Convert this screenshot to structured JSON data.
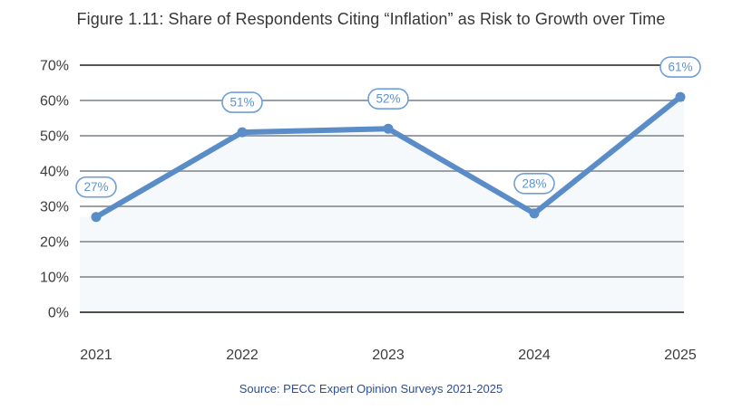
{
  "chart_data": {
    "type": "line",
    "title": "Figure 1.11: Share of Respondents Citing “Inflation” as Risk to Growth over Time",
    "categories": [
      "2021",
      "2022",
      "2023",
      "2024",
      "2025"
    ],
    "values": [
      27,
      51,
      52,
      28,
      61
    ],
    "data_labels": [
      "27%",
      "51%",
      "52%",
      "28%",
      "61%"
    ],
    "ylim": [
      0,
      70
    ],
    "y_ticks": [
      0,
      10,
      20,
      30,
      40,
      50,
      60,
      70
    ],
    "y_tick_labels": [
      "0%",
      "10%",
      "20%",
      "30%",
      "40%",
      "50%",
      "60%",
      "70%"
    ],
    "xlabel": "",
    "ylabel": "",
    "grid": true,
    "legend": "none",
    "source": "Source: PECC Expert Opinion Surveys 2021-2025",
    "colors": {
      "line": "#5a8cc7",
      "marker": "#5a8cc7",
      "area_fill": "rgba(91,140,199,0.055)",
      "pill_fill": "#ffffff",
      "pill_border": "#6f9fd8",
      "pill_text": "#5d93cf",
      "gridline": "#9aa0a6",
      "gridline_top": "#1f1f1f",
      "gridline_zero": "#4b4e53",
      "tick_text": "#3d3d3d",
      "title_text": "#373737",
      "source_text": "#274fa0"
    }
  }
}
